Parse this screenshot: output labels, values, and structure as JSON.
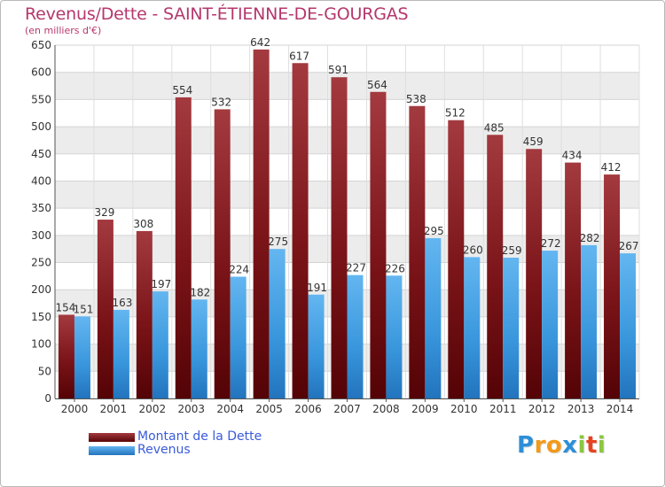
{
  "chart_data": {
    "type": "bar",
    "title": "Revenus/Dette - SAINT-ÉTIENNE-DE-GOURGAS",
    "subtitle": "(en milliers d'€)",
    "categories": [
      "2000",
      "2001",
      "2002",
      "2003",
      "2004",
      "2005",
      "2006",
      "2007",
      "2008",
      "2009",
      "2010",
      "2011",
      "2012",
      "2013",
      "2014"
    ],
    "series": [
      {
        "name": "Montant de la Dette",
        "color": "#8b1a1e",
        "values": [
          154,
          329,
          308,
          554,
          532,
          642,
          617,
          591,
          564,
          538,
          512,
          485,
          459,
          434,
          412
        ]
      },
      {
        "name": "Revenus",
        "color": "#3d9fe6",
        "values": [
          151,
          163,
          197,
          182,
          224,
          275,
          191,
          227,
          226,
          295,
          260,
          259,
          272,
          282,
          267
        ]
      }
    ],
    "ylim": [
      0,
      650
    ],
    "yticks": [
      0,
      50,
      100,
      150,
      200,
      250,
      300,
      350,
      400,
      450,
      500,
      550,
      600,
      650
    ],
    "grid": true,
    "legend": "bottom-left"
  },
  "logo": {
    "letters": [
      "P",
      "r",
      "o",
      "x",
      "i",
      "t",
      "i"
    ],
    "colors": [
      "#2d8fd8",
      "#f29a1a",
      "#f29a1a",
      "#2d8fd8",
      "#8cc63f",
      "#e8431f",
      "#8cc63f"
    ]
  }
}
